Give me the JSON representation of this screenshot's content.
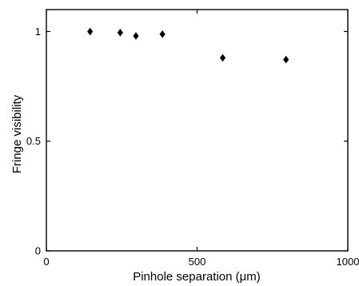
{
  "chart_data": {
    "type": "scatter",
    "title": "",
    "xlabel": "Pinhole separation (μm)",
    "ylabel": "Fringe visibility",
    "xlim": [
      0,
      1000
    ],
    "ylim": [
      0,
      1.1
    ],
    "xticks": [
      0,
      500,
      1000
    ],
    "xtick_labels": [
      "0",
      "500",
      "1000"
    ],
    "yticks": [
      0,
      0.5,
      1
    ],
    "ytick_labels": [
      "0",
      "0.5",
      "1"
    ],
    "grid": false,
    "legend": "none",
    "marker": "diamond",
    "color": "#000000",
    "series": [
      {
        "x": [
          145,
          245,
          297,
          385,
          585,
          795
        ],
        "y": [
          1.0,
          0.995,
          0.98,
          0.988,
          0.88,
          0.872
        ]
      }
    ]
  }
}
